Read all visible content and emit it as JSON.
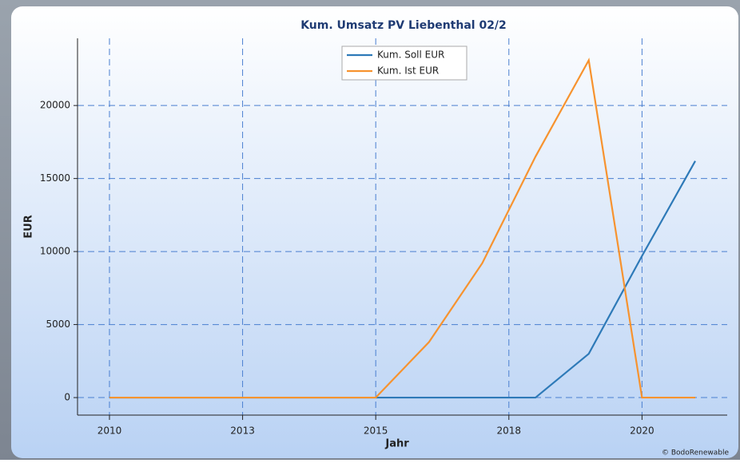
{
  "chart_data": {
    "type": "line",
    "title": "Kum. Umsatz PV Liebenthal 02/2",
    "x_label": "Jahr",
    "y_label": "EUR",
    "x": [
      2010,
      2011,
      2012,
      2013,
      2014,
      2015,
      2016,
      2017,
      2018,
      2019,
      2020,
      2021
    ],
    "series": [
      {
        "name": "Kum. Soll EUR",
        "color": "#2e7ab8",
        "values": [
          0,
          0,
          0,
          0,
          0,
          0,
          0,
          0,
          0,
          3000,
          9700,
          16200
        ]
      },
      {
        "name": "Kum. Ist EUR",
        "color": "#f7932f",
        "values": [
          0,
          0,
          0,
          0,
          0,
          0,
          3800,
          9200,
          16500,
          23100,
          0,
          0
        ]
      }
    ],
    "xlim": [
      2009.4,
      2021.6
    ],
    "ylim": [
      -1200,
      24600
    ],
    "xticks": [
      2010,
      {
        "value": 2012.5,
        "label": "2013"
      },
      2015,
      {
        "value": 2017.5,
        "label": "2018"
      },
      2020
    ],
    "yticks": [
      0,
      5000,
      10000,
      15000,
      20000
    ],
    "grid": true,
    "legend": "top",
    "credit": "© BodoRenewable"
  }
}
